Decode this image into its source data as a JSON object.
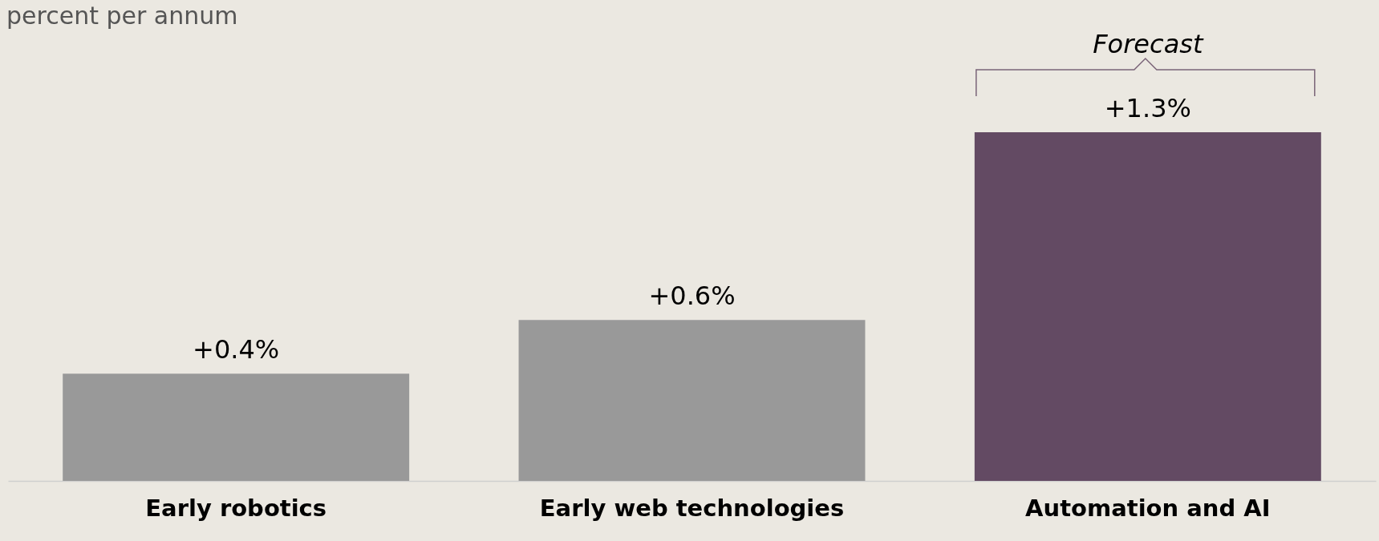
{
  "chart_data": {
    "type": "bar",
    "subtitle": "percent per annum",
    "categories": [
      "Early robotics",
      "Early web technologies",
      "Automation and AI"
    ],
    "values": [
      0.4,
      0.6,
      1.3
    ],
    "value_labels": [
      "+0.4%",
      "+0.6%",
      "+1.3%"
    ],
    "colors": [
      "#999999",
      "#999999",
      "#634a63"
    ],
    "annotations": [
      {
        "text": "Forecast",
        "x": "Automation and AI",
        "y": 1.3
      }
    ]
  }
}
